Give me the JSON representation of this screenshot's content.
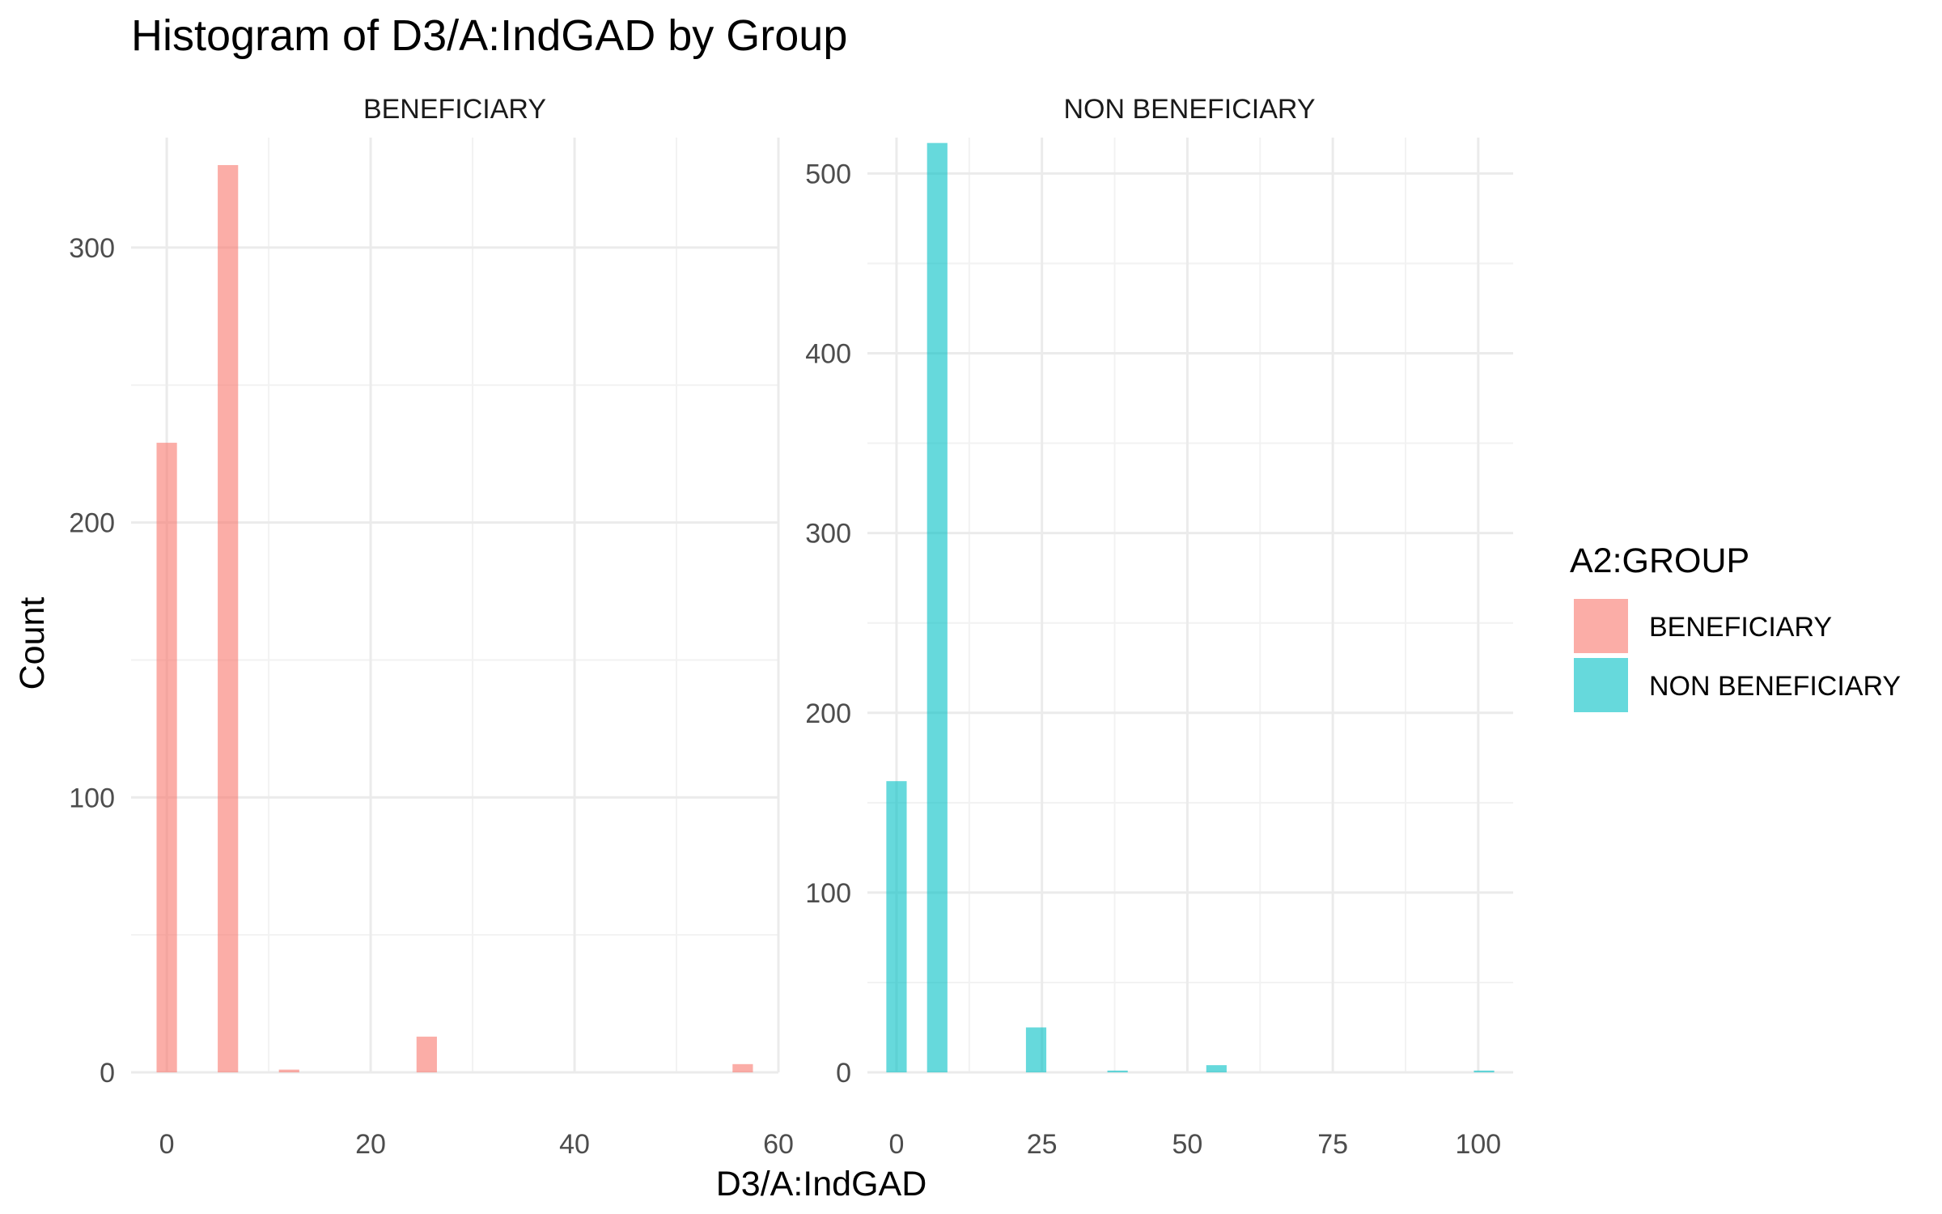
{
  "chart_data": {
    "type": "bar",
    "title": "Histogram of D3/A:IndGAD by Group",
    "xlabel": "D3/A:IndGAD",
    "ylabel": "Count",
    "grid": true,
    "legend": {
      "title": "A2:GROUP",
      "placement": "right",
      "entries": [
        {
          "label": "BENEFICIARY",
          "color": "#F8766D"
        },
        {
          "label": "NON BENEFICIARY",
          "color": "#00BFC4"
        }
      ]
    },
    "panels": [
      {
        "strip": "BENEFICIARY",
        "color": "#F8766D",
        "xlim": [
          -3.5,
          60
        ],
        "ylim": [
          0,
          340
        ],
        "xticks": [
          0,
          20,
          40,
          60
        ],
        "yticks": [
          0,
          100,
          200,
          300
        ],
        "bin_width": 2,
        "bars": [
          {
            "x": 0,
            "count": 229
          },
          {
            "x": 6,
            "count": 330
          },
          {
            "x": 12,
            "count": 1
          },
          {
            "x": 25.5,
            "count": 13
          },
          {
            "x": 56.5,
            "count": 3
          }
        ]
      },
      {
        "strip": "NON BENEFICIARY",
        "color": "#00BFC4",
        "xlim": [
          -5,
          106
        ],
        "ylim": [
          0,
          520
        ],
        "xticks": [
          0,
          25,
          50,
          75,
          100
        ],
        "yticks": [
          0,
          100,
          200,
          300,
          400,
          500
        ],
        "bin_width": 3.5,
        "bars": [
          {
            "x": 0,
            "count": 162
          },
          {
            "x": 7,
            "count": 517
          },
          {
            "x": 24,
            "count": 25
          },
          {
            "x": 38,
            "count": 1
          },
          {
            "x": 55,
            "count": 4
          },
          {
            "x": 101,
            "count": 1
          }
        ]
      }
    ]
  }
}
